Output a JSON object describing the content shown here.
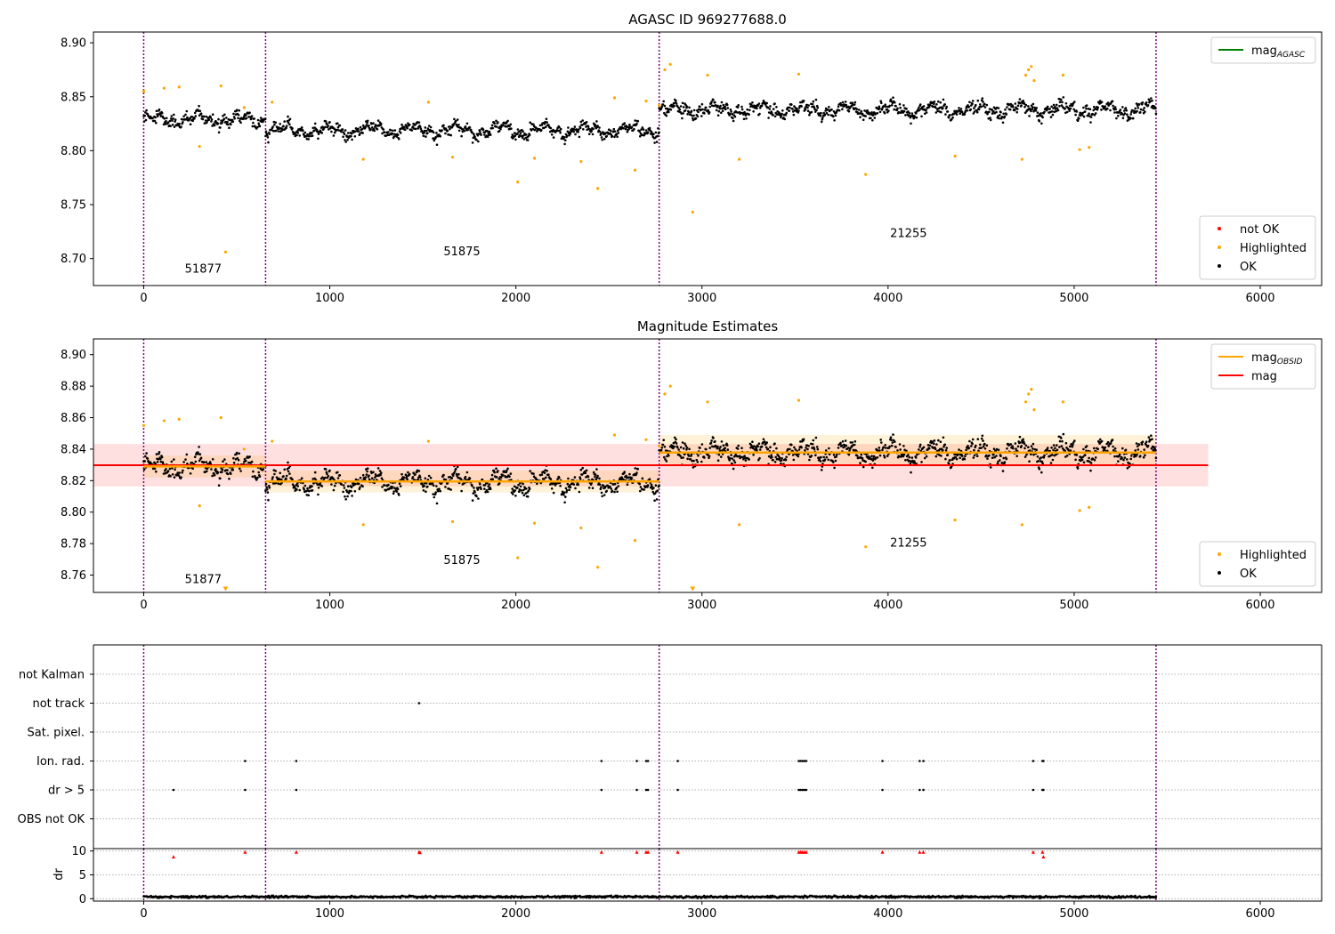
{
  "chart_data": [
    {
      "type": "scatter",
      "title": "AGASC ID 969277688.0",
      "xlim": [
        -270,
        6330
      ],
      "ylim": [
        8.675,
        8.91
      ],
      "xticks": [
        0,
        1000,
        2000,
        3000,
        4000,
        5000,
        6000
      ],
      "yticks": [
        8.7,
        8.75,
        8.8,
        8.85,
        8.9
      ],
      "grid": false,
      "obsid_boundaries": [
        0,
        655,
        2770,
        5440
      ],
      "obsid_labels": [
        {
          "text": "51877",
          "x": 320,
          "y": 8.687
        },
        {
          "text": "51875",
          "x": 1710,
          "y": 8.703
        },
        {
          "text": "21255",
          "x": 4110,
          "y": 8.72
        }
      ],
      "ok_segments": [
        {
          "x0": 0,
          "x1": 655,
          "mean": 8.829,
          "sd": 0.009
        },
        {
          "x0": 655,
          "x1": 2770,
          "mean": 8.819,
          "sd": 0.009
        },
        {
          "x0": 2770,
          "x1": 5440,
          "mean": 8.838,
          "sd": 0.01
        }
      ],
      "highlighted_points": {
        "x": [
          0,
          110,
          190,
          300,
          415,
          440,
          540,
          690,
          1180,
          1530,
          1660,
          2010,
          2100,
          2350,
          2440,
          2530,
          2640,
          2700,
          2770,
          2800,
          2830,
          2950,
          3030,
          3200,
          3520,
          3880,
          4360,
          4720,
          4740,
          4755,
          4770,
          4785,
          4940,
          5030,
          5080
        ],
        "y": [
          8.855,
          8.858,
          8.859,
          8.804,
          8.86,
          8.706,
          8.84,
          8.845,
          8.792,
          8.845,
          8.794,
          8.771,
          8.793,
          8.79,
          8.765,
          8.849,
          8.782,
          8.846,
          8.842,
          8.875,
          8.88,
          8.743,
          8.87,
          8.792,
          8.871,
          8.778,
          8.795,
          8.792,
          8.87,
          8.875,
          8.878,
          8.865,
          8.87,
          8.801,
          8.803
        ]
      },
      "not_ok_points": {
        "x": [],
        "y": []
      },
      "legends": [
        {
          "placement": "upper-right",
          "entries": [
            {
              "label": "mag",
              "sub": "AGASC",
              "color": "#008000",
              "kind": "line"
            }
          ]
        },
        {
          "placement": "lower-right",
          "entries": [
            {
              "label": "not OK",
              "color": "#ff0000",
              "kind": "dot"
            },
            {
              "label": "Highlighted",
              "color": "#ffa500",
              "kind": "dot"
            },
            {
              "label": "OK",
              "color": "#000000",
              "kind": "dot"
            }
          ]
        }
      ]
    },
    {
      "type": "scatter",
      "title": "Magnitude Estimates",
      "xlim": [
        -270,
        6330
      ],
      "ylim": [
        8.749,
        8.91
      ],
      "xticks": [
        0,
        1000,
        2000,
        3000,
        4000,
        5000,
        6000
      ],
      "yticks": [
        8.76,
        8.78,
        8.8,
        8.82,
        8.84,
        8.86,
        8.88,
        8.9
      ],
      "grid": false,
      "obsid_boundaries": [
        0,
        655,
        2770,
        5440
      ],
      "obsid_labels": [
        {
          "text": "51877",
          "x": 320,
          "y": 8.755
        },
        {
          "text": "51875",
          "x": 1710,
          "y": 8.767
        },
        {
          "text": "21255",
          "x": 4110,
          "y": 8.778
        }
      ],
      "mag_line": {
        "x0": -270,
        "x1": 5720,
        "y": 8.8298,
        "band": [
          8.8163,
          8.8433
        ],
        "color": "#ff0000"
      },
      "obsid_mag_lines": [
        {
          "x0": 0,
          "x1": 655,
          "y": 8.829,
          "band": [
            8.822,
            8.836
          ]
        },
        {
          "x0": 655,
          "x1": 2770,
          "y": 8.8195,
          "band": [
            8.8125,
            8.8265
          ]
        },
        {
          "x0": 2770,
          "x1": 5440,
          "y": 8.8378,
          "band": [
            8.829,
            8.849
          ]
        }
      ],
      "ok_segments": [
        {
          "x0": 0,
          "x1": 655,
          "mean": 8.829,
          "sd": 0.009
        },
        {
          "x0": 655,
          "x1": 2770,
          "mean": 8.819,
          "sd": 0.009
        },
        {
          "x0": 2770,
          "x1": 5440,
          "mean": 8.838,
          "sd": 0.01
        }
      ],
      "highlighted_points": {
        "x": [
          0,
          110,
          190,
          300,
          415,
          540,
          690,
          1180,
          1530,
          1660,
          2010,
          2100,
          2350,
          2440,
          2530,
          2640,
          2700,
          2770,
          2800,
          2830,
          3030,
          3200,
          3520,
          3880,
          4360,
          4720,
          4740,
          4755,
          4770,
          4785,
          4940,
          5030,
          5080
        ],
        "y": [
          8.855,
          8.858,
          8.859,
          8.804,
          8.86,
          8.84,
          8.845,
          8.792,
          8.845,
          8.794,
          8.771,
          8.793,
          8.79,
          8.765,
          8.849,
          8.782,
          8.846,
          8.842,
          8.875,
          8.88,
          8.87,
          8.792,
          8.871,
          8.778,
          8.795,
          8.792,
          8.87,
          8.875,
          8.878,
          8.865,
          8.87,
          8.801,
          8.803
        ]
      },
      "clipped_markers": {
        "x": [
          440,
          2950
        ],
        "y": [
          8.751,
          8.751
        ]
      },
      "legends": [
        {
          "placement": "upper-right",
          "entries": [
            {
              "label": "mag",
              "sub": "OBSID",
              "color": "#ffa500",
              "kind": "line"
            },
            {
              "label": "mag",
              "sub": "",
              "color": "#ff0000",
              "kind": "line"
            }
          ]
        },
        {
          "placement": "lower-right",
          "entries": [
            {
              "label": "Highlighted",
              "color": "#ffa500",
              "kind": "dot"
            },
            {
              "label": "OK",
              "color": "#000000",
              "kind": "dot"
            }
          ]
        }
      ]
    },
    {
      "type": "scatter",
      "xlim": [
        -270,
        6330
      ],
      "categories": [
        "not Kalman",
        "not track",
        "Sat. pixel.",
        "Ion. rad.",
        "dr > 5",
        "OBS not OK"
      ],
      "grid": true,
      "obsid_boundaries": [
        0,
        655,
        2770,
        5440
      ],
      "flags": {
        "not track": [
          1480
        ],
        "Ion. rad.": [
          545,
          820,
          2460,
          2650,
          2700,
          2710,
          2870,
          3520,
          3530,
          3540,
          3550,
          3560,
          3970,
          4170,
          4190,
          4780,
          4830,
          4835
        ],
        "dr > 5": [
          160,
          545,
          820,
          2460,
          2650,
          2700,
          2710,
          2870,
          3520,
          3530,
          3540,
          3550,
          3560,
          3970,
          4170,
          4190,
          4780,
          4830,
          4835
        ]
      }
    },
    {
      "type": "scatter",
      "xlim": [
        -270,
        6330
      ],
      "ylim": [
        -0.5,
        10.5
      ],
      "ylabel": "dr",
      "yticks": [
        0,
        5,
        10
      ],
      "xticks": [
        0,
        1000,
        2000,
        3000,
        4000,
        5000,
        6000
      ],
      "grid": true,
      "obsid_boundaries": [
        0,
        655,
        2770,
        5440
      ],
      "dr_base": {
        "x0": 0,
        "x1": 5440,
        "mean": 0.4,
        "max": 1.4
      },
      "red_markers": {
        "x": [
          160,
          545,
          820,
          1480,
          1485,
          2460,
          2650,
          2700,
          2710,
          2870,
          3520,
          3530,
          3540,
          3550,
          3560,
          3970,
          4170,
          4190,
          4780,
          4830,
          4835
        ],
        "y": [
          8.8,
          9.8,
          9.8,
          9.8,
          9.7,
          9.8,
          9.8,
          9.8,
          9.8,
          9.8,
          9.8,
          9.8,
          9.8,
          9.8,
          9.8,
          9.8,
          9.8,
          9.8,
          9.8,
          9.8,
          8.8
        ]
      }
    }
  ]
}
